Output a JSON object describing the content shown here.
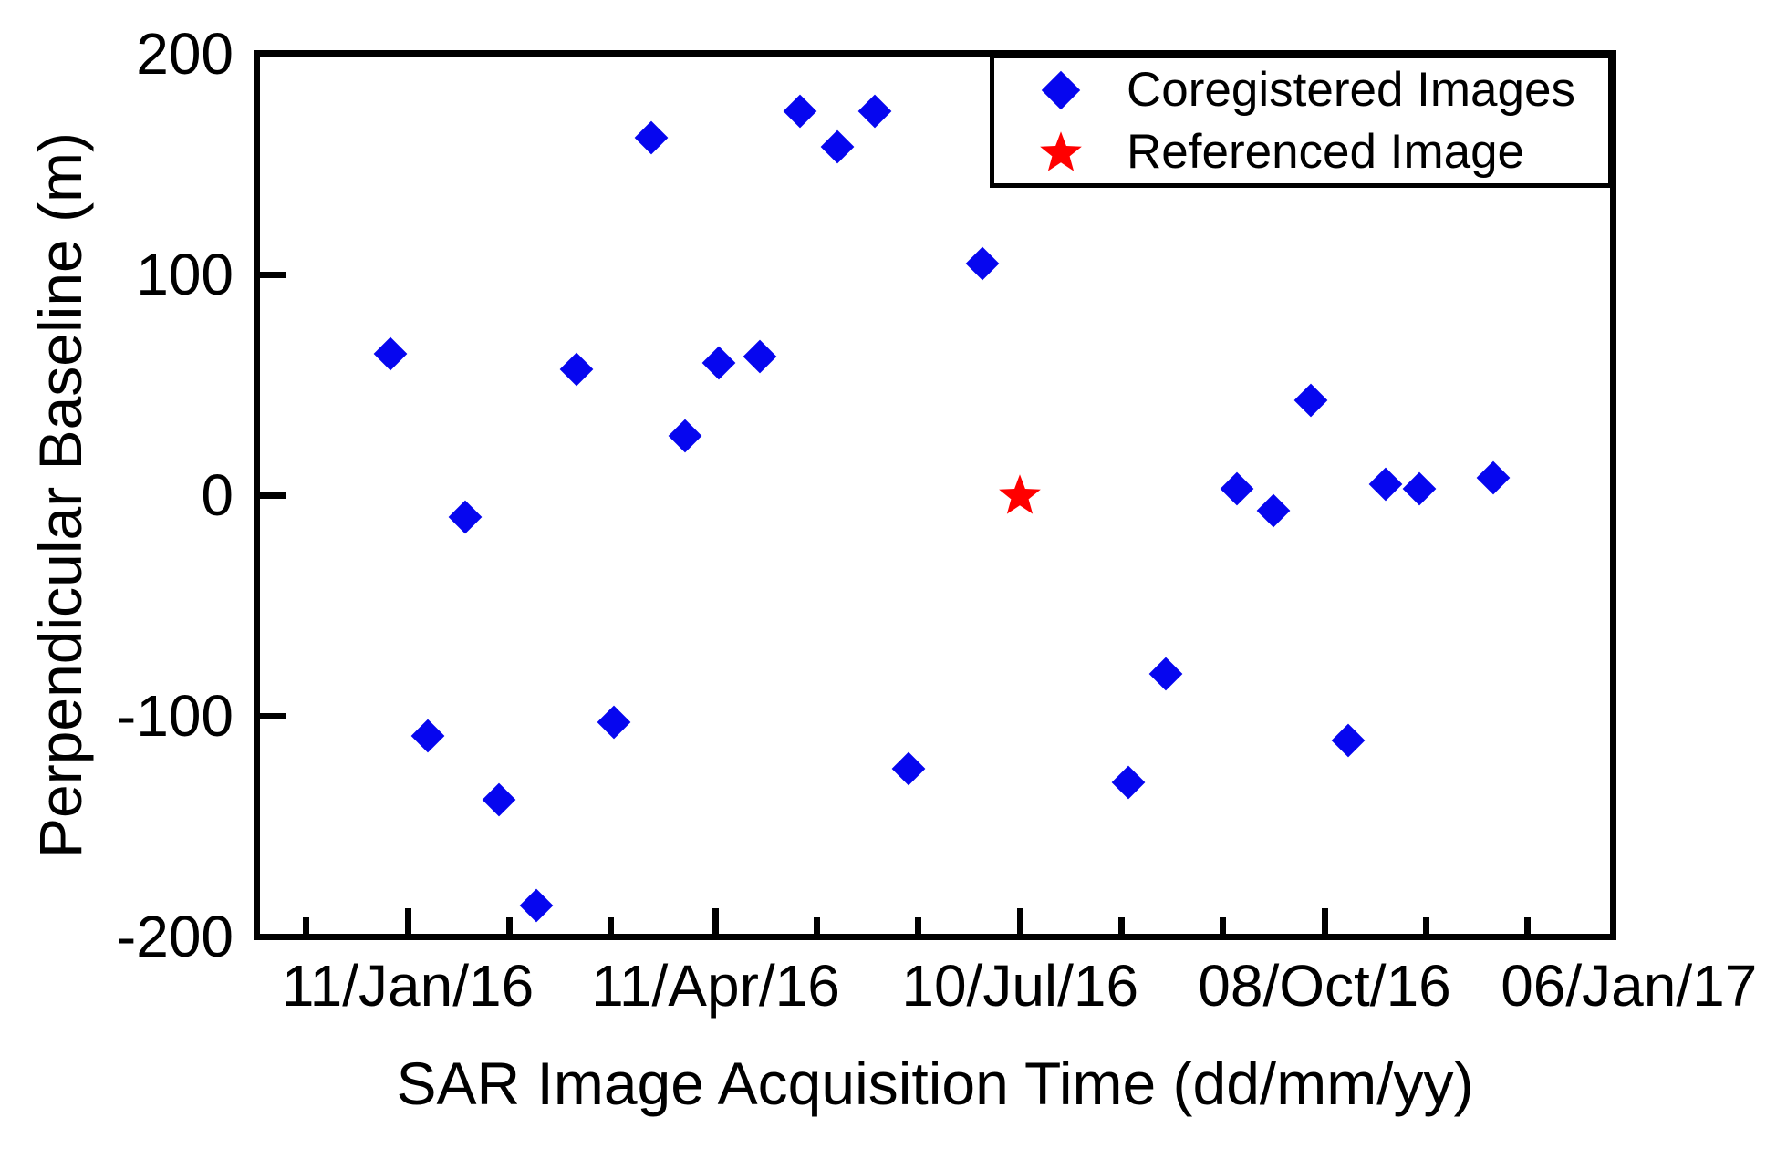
{
  "figure": {
    "background": "#ffffff",
    "axis_color": "#000000"
  },
  "chart_data": {
    "type": "scatter",
    "title": "",
    "xlabel": "SAR Image Acquisition Time (dd/mm/yy)",
    "ylabel": "Perpendicular Baseline (m)",
    "ylim": [
      -200,
      200
    ],
    "grid": false,
    "legend_position": "top-right",
    "yticks": [
      {
        "value": 200,
        "label": "200"
      },
      {
        "value": 100,
        "label": "100"
      },
      {
        "value": 0,
        "label": "0"
      },
      {
        "value": -100,
        "label": "-100"
      },
      {
        "value": -200,
        "label": "-200"
      }
    ],
    "x_axis": {
      "major_ticks": [
        {
          "date": "2016-01-11",
          "label": "11/Jan/16"
        },
        {
          "date": "2016-04-11",
          "label": "11/Apr/16"
        },
        {
          "date": "2016-07-10",
          "label": "10/Jul/16"
        },
        {
          "date": "2016-10-08",
          "label": "08/Oct/16"
        },
        {
          "date": "2017-01-06",
          "label": "06/Jan/17"
        }
      ],
      "minor_tick_dates": [
        "2015-12-12",
        "2016-02-10",
        "2016-03-11",
        "2016-05-11",
        "2016-06-10",
        "2016-08-09",
        "2016-09-08",
        "2016-11-07",
        "2016-12-07"
      ]
    },
    "series": [
      {
        "name": "Coregistered Images",
        "marker": "diamond",
        "color": "#0606EF",
        "points": [
          {
            "date": "2016-01-06",
            "baseline": 64
          },
          {
            "date": "2016-01-17",
            "baseline": -109
          },
          {
            "date": "2016-01-28",
            "baseline": -10
          },
          {
            "date": "2016-02-07",
            "baseline": -138
          },
          {
            "date": "2016-02-18",
            "baseline": -186
          },
          {
            "date": "2016-03-01",
            "baseline": 57
          },
          {
            "date": "2016-03-12",
            "baseline": -103
          },
          {
            "date": "2016-03-23",
            "baseline": 162
          },
          {
            "date": "2016-04-02",
            "baseline": 27
          },
          {
            "date": "2016-04-12",
            "baseline": 60
          },
          {
            "date": "2016-04-24",
            "baseline": 63
          },
          {
            "date": "2016-05-06",
            "baseline": 174
          },
          {
            "date": "2016-05-17",
            "baseline": 158
          },
          {
            "date": "2016-05-28",
            "baseline": 174
          },
          {
            "date": "2016-06-07",
            "baseline": -124
          },
          {
            "date": "2016-06-29",
            "baseline": 105
          },
          {
            "date": "2016-08-11",
            "baseline": -130
          },
          {
            "date": "2016-08-22",
            "baseline": -81
          },
          {
            "date": "2016-09-12",
            "baseline": 3
          },
          {
            "date": "2016-09-23",
            "baseline": -7
          },
          {
            "date": "2016-10-04",
            "baseline": 43
          },
          {
            "date": "2016-10-15",
            "baseline": -111
          },
          {
            "date": "2016-10-26",
            "baseline": 5
          },
          {
            "date": "2016-11-05",
            "baseline": 3
          },
          {
            "date": "2016-11-27",
            "baseline": 8
          }
        ]
      },
      {
        "name": "Referenced Image",
        "marker": "star",
        "color": "#FF0000",
        "points": [
          {
            "date": "2016-07-10",
            "baseline": 0
          }
        ]
      }
    ]
  }
}
